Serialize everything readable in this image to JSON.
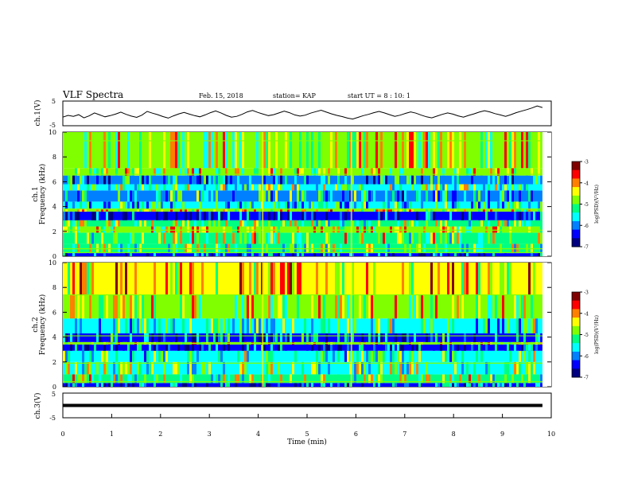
{
  "header": {
    "title": "VLF Spectra",
    "date": "Feb. 15, 2018",
    "station": "station= KAP",
    "start_time": "start  UT =   8 : 10: 1"
  },
  "colors": {
    "trace": "#000000",
    "frame": "#000000",
    "colormap": [
      "#000080",
      "#0000ff",
      "#0080ff",
      "#00ffff",
      "#00ff80",
      "#80ff00",
      "#ffff00",
      "#ff8000",
      "#ff0000",
      "#800000"
    ]
  },
  "chart_data": [
    {
      "type": "line",
      "id": "ch1-waveform",
      "ylabel": "ch.1(V)",
      "ytick_labels": [
        "5",
        "-5"
      ],
      "ylim": [
        -5,
        5
      ],
      "xlim": [
        0,
        10
      ],
      "xlim_data_end_min": 9.82,
      "series": [
        {
          "values": [
            -1.5,
            -0.8,
            -1.2,
            -0.5,
            -1.8,
            -1.0,
            0.2,
            -0.6,
            -1.4,
            -0.9,
            -0.3,
            0.5,
            -0.4,
            -1.1,
            -1.6,
            -0.7,
            0.8,
            0.1,
            -0.5,
            -1.3,
            -1.9,
            -1.0,
            -0.2,
            0.4,
            -0.3,
            -0.9,
            -1.4,
            -0.6,
            0.3,
            1.0,
            0.2,
            -0.8,
            -1.5,
            -1.2,
            -0.4,
            0.6,
            1.2,
            0.4,
            -0.3,
            -0.9,
            -0.5,
            0.2,
            0.9,
            0.3,
            -0.6,
            -1.1,
            -0.7,
            0.1,
            0.7,
            1.3,
            0.5,
            -0.2,
            -0.8,
            -1.3,
            -1.9,
            -2.3,
            -1.6,
            -0.9,
            -0.4,
            0.3,
            0.8,
            0.2,
            -0.5,
            -1.2,
            -0.7,
            0.0,
            0.6,
            0.1,
            -0.7,
            -1.4,
            -1.8,
            -1.1,
            -0.4,
            0.2,
            -0.3,
            -1.0,
            -1.5,
            -0.8,
            -0.2,
            0.5,
            1.1,
            0.6,
            -0.1,
            -0.6,
            -1.2,
            -0.5,
            0.3,
            0.9,
            1.5,
            2.2,
            3.0,
            2.4
          ]
        }
      ]
    },
    {
      "type": "heatmap",
      "id": "ch1-spectrogram",
      "ylabel": "ch.1",
      "ylabel2": "Frequency (kHz)",
      "yticks": [
        0,
        2,
        4,
        6,
        8,
        10
      ],
      "ylim": [
        0,
        10
      ],
      "xlim": [
        0,
        10
      ],
      "xlim_data_end_min": 9.82,
      "colorbar": {
        "label": "log(PSD)(V²/Hz)",
        "range": [
          -7,
          -3
        ],
        "tick_labels": [
          "-3",
          "-4",
          "-5",
          "-6",
          "-7"
        ]
      },
      "bands": [
        {
          "from": 0.0,
          "to": 0.25,
          "level": -6.4
        },
        {
          "from": 0.25,
          "to": 1.0,
          "level": -5.3
        },
        {
          "from": 1.0,
          "to": 1.9,
          "level": -5.1
        },
        {
          "from": 1.9,
          "to": 2.4,
          "level": -4.8
        },
        {
          "from": 2.4,
          "to": 2.9,
          "level": -5.2
        },
        {
          "from": 2.9,
          "to": 3.6,
          "level": -6.5
        },
        {
          "from": 3.6,
          "to": 3.85,
          "level": -4.7
        },
        {
          "from": 3.85,
          "to": 4.4,
          "level": -5.8
        },
        {
          "from": 4.4,
          "to": 5.3,
          "level": -5.9
        },
        {
          "from": 5.3,
          "to": 5.8,
          "level": -5.4
        },
        {
          "from": 5.8,
          "to": 6.5,
          "level": -6.1
        },
        {
          "from": 6.5,
          "to": 7.1,
          "level": -5.0
        },
        {
          "from": 7.1,
          "to": 10.0,
          "level": -5.0
        }
      ],
      "lines_khz": [
        0.3,
        0.6,
        2.1,
        3.8,
        6.6,
        9.3
      ]
    },
    {
      "type": "heatmap",
      "id": "ch2-spectrogram",
      "ylabel": "ch.2",
      "ylabel2": "Frequency (kHz)",
      "yticks": [
        0,
        2,
        4,
        6,
        8,
        10
      ],
      "ylim": [
        0,
        10
      ],
      "xlim": [
        0,
        10
      ],
      "xlim_data_end_min": 9.82,
      "colorbar": {
        "label": "log(PSD)(V²/Hz)",
        "range": [
          -7,
          -3
        ],
        "tick_labels": [
          "-3",
          "-4",
          "-5",
          "-6",
          "-7"
        ]
      },
      "bands": [
        {
          "from": 0.0,
          "to": 0.3,
          "level": -6.5
        },
        {
          "from": 0.3,
          "to": 1.0,
          "level": -5.2
        },
        {
          "from": 1.0,
          "to": 2.0,
          "level": -5.4
        },
        {
          "from": 2.0,
          "to": 2.9,
          "level": -5.5
        },
        {
          "from": 2.9,
          "to": 3.4,
          "level": -6.5
        },
        {
          "from": 3.4,
          "to": 3.6,
          "level": -4.9
        },
        {
          "from": 3.6,
          "to": 4.3,
          "level": -6.3
        },
        {
          "from": 4.3,
          "to": 5.5,
          "level": -5.6
        },
        {
          "from": 5.5,
          "to": 7.4,
          "level": -4.9
        },
        {
          "from": 7.4,
          "to": 10.0,
          "level": -4.6
        }
      ],
      "lines_khz": [
        0.4,
        1.9,
        3.5,
        4.1,
        7.4
      ]
    },
    {
      "type": "line",
      "id": "ch3-waveform",
      "ylabel": "ch.3(V)",
      "ytick_labels": [
        "5",
        "-5"
      ],
      "ylim": [
        -5,
        5
      ],
      "xlim": [
        0,
        10
      ],
      "xlim_data_end_min": 9.82,
      "series": [
        {
          "values": [
            0.0,
            0.0
          ]
        }
      ]
    }
  ],
  "xaxis": {
    "label": "Time (min)",
    "tick_labels": [
      "0",
      "1",
      "2",
      "3",
      "4",
      "5",
      "6",
      "7",
      "8",
      "9",
      "10"
    ]
  }
}
